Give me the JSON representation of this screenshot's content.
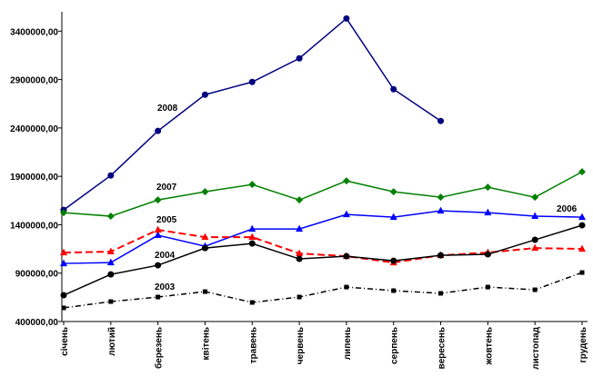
{
  "chart_data": {
    "type": "line",
    "categories": [
      "січень",
      "лютий",
      "березень",
      "квітень",
      "травень",
      "червень",
      "липень",
      "серпень",
      "вересень",
      "жовтень",
      "листопад",
      "грудень"
    ],
    "ylim": [
      400000,
      3600000
    ],
    "yticks": [
      {
        "value": 400000,
        "label": "400000,00"
      },
      {
        "value": 900000,
        "label": "900000,00"
      },
      {
        "value": 1400000,
        "label": "1400000,00"
      },
      {
        "value": 1900000,
        "label": "1900000,00"
      },
      {
        "value": 2400000,
        "label": "2400000,00"
      },
      {
        "value": 2900000,
        "label": "2900000,00"
      },
      {
        "value": 3400000,
        "label": "3400000,00"
      }
    ],
    "grid": false,
    "series": [
      {
        "name": "2008",
        "color": "#000080",
        "marker": "circle",
        "dash": "solid",
        "values": [
          1553000,
          1909000,
          2369000,
          2744000,
          2875000,
          3119000,
          3531000,
          2800000,
          2472000,
          null,
          null,
          null
        ]
      },
      {
        "name": "2007",
        "color": "#008000",
        "marker": "diamond",
        "dash": "solid",
        "values": [
          1525000,
          1488000,
          1656000,
          1741000,
          1816000,
          1656000,
          1853000,
          1741000,
          1684000,
          1788000,
          1684000,
          1947000
        ]
      },
      {
        "name": "2006",
        "color": "#0000ff",
        "marker": "triangle",
        "dash": "solid",
        "values": [
          1000000,
          1009000,
          1291000,
          1178000,
          1356000,
          1356000,
          1506000,
          1478000,
          1544000,
          1525000,
          1488000,
          1478000
        ]
      },
      {
        "name": "2005",
        "color": "#ff0000",
        "marker": "triangle",
        "dash": "dashed",
        "values": [
          1112000,
          1122000,
          1347000,
          1272000,
          1272000,
          1103000,
          1075000,
          1009000,
          1084000,
          1112000,
          1159000,
          1150000
        ]
      },
      {
        "name": "2004",
        "color": "#000000",
        "marker": "circle",
        "dash": "solid",
        "values": [
          672000,
          887000,
          981000,
          1159000,
          1206000,
          1047000,
          1075000,
          1028000,
          1084000,
          1094000,
          1244000,
          1394000
        ]
      },
      {
        "name": "2003",
        "color": "#000000",
        "marker": "square",
        "dash": "dashdot",
        "values": [
          541000,
          606000,
          653000,
          709000,
          597000,
          653000,
          756000,
          719000,
          691000,
          756000,
          728000,
          906000
        ]
      }
    ]
  }
}
